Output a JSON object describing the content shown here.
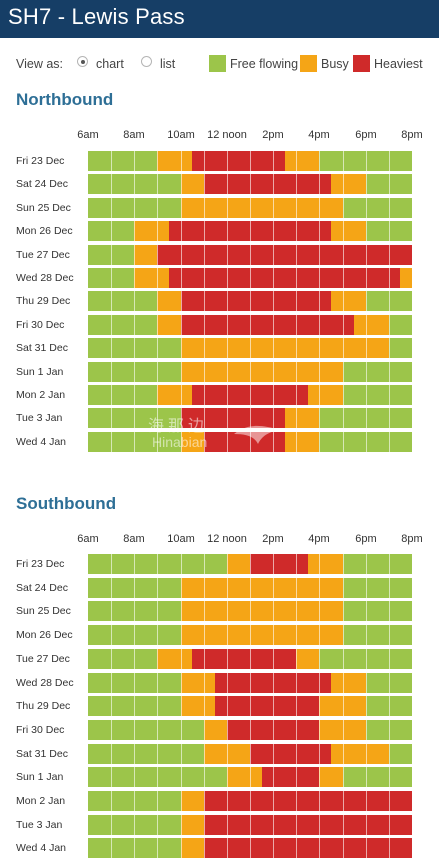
{
  "header": {
    "title": "SH7 - Lewis Pass"
  },
  "controls": {
    "view_label": "View as:",
    "options": [
      {
        "label": "chart",
        "selected": true
      },
      {
        "label": "list",
        "selected": false
      }
    ]
  },
  "legend": [
    {
      "label": "Free flowing",
      "color": "#9cc54a"
    },
    {
      "label": "Busy",
      "color": "#f5a516"
    },
    {
      "label": "Heaviest",
      "color": "#cf2a2a"
    }
  ],
  "time_ticks": [
    "6am",
    "8am",
    "10am",
    "12 noon",
    "2pm",
    "4pm",
    "6pm",
    "8pm"
  ],
  "watermark": {
    "text_cn": "海那边",
    "text_en": "Hinabian"
  },
  "chart_data": [
    {
      "type": "timeline",
      "title": "Northbound",
      "x_unit": "hour of day",
      "x_range": [
        6,
        20
      ],
      "levels": {
        "F": "Free flowing",
        "B": "Busy",
        "H": "Heaviest"
      },
      "rows": [
        {
          "day": "Fri 23 Dec",
          "segments": [
            [
              6,
              9,
              "F"
            ],
            [
              9,
              10.5,
              "B"
            ],
            [
              10.5,
              14.5,
              "H"
            ],
            [
              14.5,
              16,
              "B"
            ],
            [
              16,
              20,
              "F"
            ]
          ]
        },
        {
          "day": "Sat 24 Dec",
          "segments": [
            [
              6,
              10,
              "F"
            ],
            [
              10,
              11,
              "B"
            ],
            [
              11,
              16.5,
              "H"
            ],
            [
              16.5,
              18,
              "B"
            ],
            [
              18,
              20,
              "F"
            ]
          ]
        },
        {
          "day": "Sun 25 Dec",
          "segments": [
            [
              6,
              10,
              "F"
            ],
            [
              10,
              17,
              "B"
            ],
            [
              17,
              20,
              "F"
            ]
          ]
        },
        {
          "day": "Mon 26 Dec",
          "segments": [
            [
              6,
              8,
              "F"
            ],
            [
              8,
              9.5,
              "B"
            ],
            [
              9.5,
              16.5,
              "H"
            ],
            [
              16.5,
              18,
              "B"
            ],
            [
              18,
              20,
              "F"
            ]
          ]
        },
        {
          "day": "Tue 27 Dec",
          "segments": [
            [
              6,
              8,
              "F"
            ],
            [
              8,
              9,
              "B"
            ],
            [
              9,
              20,
              "H"
            ]
          ]
        },
        {
          "day": "Wed 28 Dec",
          "segments": [
            [
              6,
              8,
              "F"
            ],
            [
              8,
              9.5,
              "B"
            ],
            [
              9.5,
              19.5,
              "H"
            ],
            [
              19.5,
              20,
              "B"
            ]
          ]
        },
        {
          "day": "Thu 29 Dec",
          "segments": [
            [
              6,
              9,
              "F"
            ],
            [
              9,
              10,
              "B"
            ],
            [
              10,
              16.5,
              "H"
            ],
            [
              16.5,
              18,
              "B"
            ],
            [
              18,
              20,
              "F"
            ]
          ]
        },
        {
          "day": "Fri 30 Dec",
          "segments": [
            [
              6,
              9,
              "F"
            ],
            [
              9,
              10,
              "B"
            ],
            [
              10,
              17.5,
              "H"
            ],
            [
              17.5,
              19,
              "B"
            ],
            [
              19,
              20,
              "F"
            ]
          ]
        },
        {
          "day": "Sat 31 Dec",
          "segments": [
            [
              6,
              10,
              "F"
            ],
            [
              10,
              19,
              "B"
            ],
            [
              19,
              20,
              "F"
            ]
          ]
        },
        {
          "day": "Sun 1 Jan",
          "segments": [
            [
              6,
              10,
              "F"
            ],
            [
              10,
              17,
              "B"
            ],
            [
              17,
              20,
              "F"
            ]
          ]
        },
        {
          "day": "Mon 2 Jan",
          "segments": [
            [
              6,
              9,
              "F"
            ],
            [
              9,
              10.5,
              "B"
            ],
            [
              10.5,
              15.5,
              "H"
            ],
            [
              15.5,
              17,
              "B"
            ],
            [
              17,
              20,
              "F"
            ]
          ]
        },
        {
          "day": "Tue 3 Jan",
          "segments": [
            [
              6,
              10,
              "F"
            ],
            [
              10,
              14.5,
              "H"
            ],
            [
              14.5,
              16,
              "B"
            ],
            [
              16,
              20,
              "F"
            ]
          ]
        },
        {
          "day": "Wed 4 Jan",
          "segments": [
            [
              6,
              10,
              "F"
            ],
            [
              10,
              11,
              "B"
            ],
            [
              11,
              14.5,
              "H"
            ],
            [
              14.5,
              16,
              "B"
            ],
            [
              16,
              20,
              "F"
            ]
          ]
        }
      ]
    },
    {
      "type": "timeline",
      "title": "Southbound",
      "x_unit": "hour of day",
      "x_range": [
        6,
        20
      ],
      "levels": {
        "F": "Free flowing",
        "B": "Busy",
        "H": "Heaviest"
      },
      "rows": [
        {
          "day": "Fri 23 Dec",
          "segments": [
            [
              6,
              12,
              "F"
            ],
            [
              12,
              13,
              "B"
            ],
            [
              13,
              15.5,
              "H"
            ],
            [
              15.5,
              17,
              "B"
            ],
            [
              17,
              20,
              "F"
            ]
          ]
        },
        {
          "day": "Sat 24 Dec",
          "segments": [
            [
              6,
              10,
              "F"
            ],
            [
              10,
              17,
              "B"
            ],
            [
              17,
              20,
              "F"
            ]
          ]
        },
        {
          "day": "Sun 25 Dec",
          "segments": [
            [
              6,
              10,
              "F"
            ],
            [
              10,
              17,
              "B"
            ],
            [
              17,
              20,
              "F"
            ]
          ]
        },
        {
          "day": "Mon 26 Dec",
          "segments": [
            [
              6,
              10,
              "F"
            ],
            [
              10,
              17,
              "B"
            ],
            [
              17,
              20,
              "F"
            ]
          ]
        },
        {
          "day": "Tue 27 Dec",
          "segments": [
            [
              6,
              9,
              "F"
            ],
            [
              9,
              10.5,
              "B"
            ],
            [
              10.5,
              15,
              "H"
            ],
            [
              15,
              16,
              "B"
            ],
            [
              16,
              20,
              "F"
            ]
          ]
        },
        {
          "day": "Wed 28 Dec",
          "segments": [
            [
              6,
              10,
              "F"
            ],
            [
              10,
              11.5,
              "B"
            ],
            [
              11.5,
              16.5,
              "H"
            ],
            [
              16.5,
              18,
              "B"
            ],
            [
              18,
              20,
              "F"
            ]
          ]
        },
        {
          "day": "Thu 29 Dec",
          "segments": [
            [
              6,
              10,
              "F"
            ],
            [
              10,
              11.5,
              "B"
            ],
            [
              11.5,
              16,
              "H"
            ],
            [
              16,
              18,
              "B"
            ],
            [
              18,
              20,
              "F"
            ]
          ]
        },
        {
          "day": "Fri 30 Dec",
          "segments": [
            [
              6,
              11,
              "F"
            ],
            [
              11,
              12,
              "B"
            ],
            [
              12,
              16,
              "H"
            ],
            [
              16,
              18,
              "B"
            ],
            [
              18,
              20,
              "F"
            ]
          ]
        },
        {
          "day": "Sat 31 Dec",
          "segments": [
            [
              6,
              11,
              "F"
            ],
            [
              11,
              13,
              "B"
            ],
            [
              13,
              16.5,
              "H"
            ],
            [
              16.5,
              19,
              "B"
            ],
            [
              19,
              20,
              "F"
            ]
          ]
        },
        {
          "day": "Sun 1 Jan",
          "segments": [
            [
              6,
              12,
              "F"
            ],
            [
              12,
              13.5,
              "B"
            ],
            [
              13.5,
              16,
              "H"
            ],
            [
              16,
              17,
              "B"
            ],
            [
              17,
              20,
              "F"
            ]
          ]
        },
        {
          "day": "Mon 2 Jan",
          "segments": [
            [
              6,
              10,
              "F"
            ],
            [
              10,
              11,
              "B"
            ],
            [
              11,
              20,
              "H"
            ]
          ]
        },
        {
          "day": "Tue 3 Jan",
          "segments": [
            [
              6,
              10,
              "F"
            ],
            [
              10,
              11,
              "B"
            ],
            [
              11,
              20,
              "H"
            ]
          ]
        },
        {
          "day": "Wed 4 Jan",
          "segments": [
            [
              6,
              10,
              "F"
            ],
            [
              10,
              11,
              "B"
            ],
            [
              11,
              20,
              "H"
            ]
          ]
        }
      ]
    }
  ]
}
